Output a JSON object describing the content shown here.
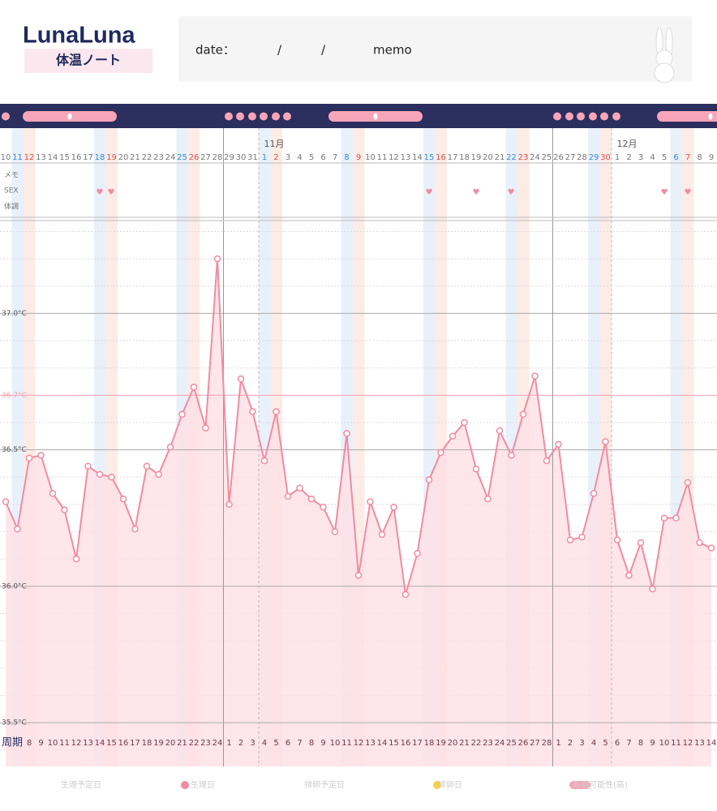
{
  "header": {
    "logo": "LunaLuna",
    "subtitle": "体温ノート",
    "date_label": "date：",
    "slash1": "/",
    "slash2": "/",
    "memo_label": "memo"
  },
  "row_labels": [
    "メモ",
    "SEX",
    "体調"
  ],
  "chart_data": {
    "type": "line",
    "categories": [
      "10",
      "11",
      "12",
      "13",
      "14",
      "15",
      "16",
      "17",
      "18",
      "19",
      "20",
      "21",
      "22",
      "23",
      "24",
      "25",
      "26",
      "27",
      "28",
      "29",
      "30",
      "31",
      "1",
      "2",
      "3",
      "4",
      "5",
      "6",
      "7",
      "8",
      "9",
      "10",
      "11",
      "12",
      "13",
      "14",
      "15",
      "16",
      "17",
      "18",
      "19",
      "20",
      "21",
      "22",
      "23",
      "24",
      "25",
      "26",
      "27",
      "28",
      "29",
      "30",
      "1",
      "2",
      "3",
      "4",
      "5",
      "6",
      "7",
      "8",
      "9"
    ],
    "month_labels": [
      null,
      null,
      null,
      null,
      null,
      null,
      null,
      null,
      null,
      null,
      null,
      null,
      null,
      null,
      null,
      null,
      null,
      null,
      null,
      null,
      null,
      null,
      "11月",
      null,
      null,
      null,
      null,
      null,
      null,
      null,
      null,
      null,
      null,
      null,
      null,
      null,
      null,
      null,
      null,
      null,
      null,
      null,
      null,
      null,
      null,
      null,
      null,
      null,
      null,
      null,
      null,
      null,
      "12月",
      null,
      null,
      null,
      null,
      null,
      null,
      null,
      null
    ],
    "cycle_label": "周期",
    "cycle_days": [
      null,
      null,
      8,
      9,
      10,
      11,
      12,
      13,
      14,
      15,
      16,
      17,
      18,
      19,
      20,
      21,
      22,
      23,
      24,
      1,
      2,
      3,
      4,
      5,
      6,
      7,
      8,
      9,
      10,
      11,
      12,
      13,
      14,
      15,
      16,
      17,
      18,
      19,
      20,
      21,
      22,
      23,
      24,
      25,
      26,
      27,
      28,
      1,
      2,
      3,
      4,
      5,
      6,
      7,
      8,
      9,
      10,
      11,
      12,
      13,
      14
    ],
    "values": [
      36.31,
      36.21,
      36.47,
      36.48,
      36.34,
      36.28,
      36.1,
      36.44,
      36.41,
      36.4,
      36.32,
      36.21,
      36.44,
      36.41,
      36.51,
      36.63,
      36.73,
      36.58,
      37.2,
      36.3,
      36.76,
      36.64,
      36.46,
      36.64,
      36.33,
      36.36,
      36.32,
      36.29,
      36.2,
      36.56,
      36.04,
      36.31,
      36.19,
      36.29,
      35.97,
      36.12,
      36.39,
      36.49,
      36.55,
      36.6,
      36.43,
      36.32,
      36.57,
      36.48,
      36.63,
      36.77,
      36.46,
      36.52,
      36.17,
      36.18,
      36.34,
      36.53,
      36.17,
      36.04,
      36.16,
      35.99,
      36.25,
      36.25,
      36.38,
      36.16,
      36.14
    ],
    "color": "#f08ca0",
    "ylim": [
      35.34,
      37.34
    ],
    "yticks": [
      {
        "value": 35.5,
        "label": "35.5°C"
      },
      {
        "value": 36.0,
        "label": "36.0°C"
      },
      {
        "value": 36.5,
        "label": "36.5°C"
      },
      {
        "value": 37.0,
        "label": "37.0°C"
      }
    ],
    "minor_yticks": [
      35.4,
      35.6,
      35.7,
      35.8,
      35.9,
      36.1,
      36.2,
      36.3,
      36.4,
      36.6,
      36.8,
      36.9,
      37.1,
      37.2,
      37.3
    ],
    "reference_line": {
      "value": 36.7,
      "label": "36.7°C",
      "color": "#f4a0b0"
    },
    "grid": true,
    "legend": [
      "生理予定日",
      "生理日",
      "排卵予定日",
      "排卵日",
      "妊娠可能性(高)"
    ]
  }
}
